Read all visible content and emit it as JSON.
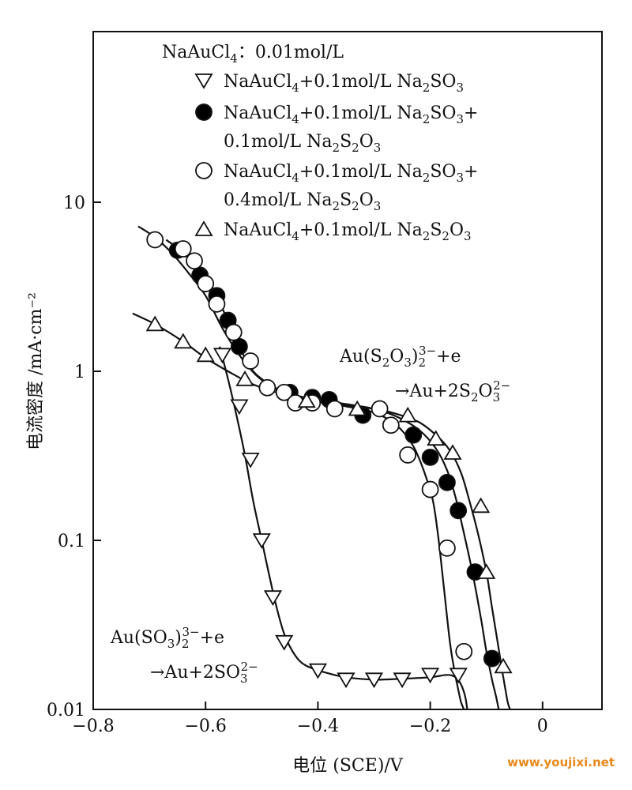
{
  "chart_data": {
    "type": "scatter",
    "title": "",
    "xlabel": "电位 (SCE)/V",
    "ylabel": "电流密度 /mA·cm⁻²",
    "xlim": [
      -0.8,
      0.0
    ],
    "ylim": [
      0.01,
      100
    ],
    "y_scale": "log",
    "x_ticks": [
      -0.8,
      -0.6,
      -0.4,
      -0.2,
      0
    ],
    "x_tick_labels": [
      "−0.8",
      "−0.6",
      "−0.4",
      "−0.2",
      "0"
    ],
    "y_ticks": [
      0.01,
      0.1,
      1,
      10
    ],
    "y_tick_labels": [
      "0.01",
      "0.1",
      "1",
      "10"
    ],
    "grid": false,
    "legend_position": "top",
    "legend_header": {
      "main": "NaAuCl",
      "sub": "4",
      "after": "：0.01mol/L"
    },
    "series": [
      {
        "marker": "triangle-down",
        "fill": "#ffffff",
        "label_lines": [
          [
            [
              "NaAuCl",
              ""
            ],
            [
              "4",
              "sub"
            ],
            [
              "+0.1mol/L Na",
              ""
            ],
            [
              "2",
              "sub"
            ],
            [
              "SO",
              ""
            ],
            [
              "3",
              "sub"
            ]
          ]
        ],
        "x": [
          -0.57,
          -0.54,
          -0.52,
          -0.5,
          -0.48,
          -0.46,
          -0.4,
          -0.35,
          -0.3,
          -0.25,
          -0.2,
          -0.15
        ],
        "y": [
          1.25,
          0.62,
          0.3,
          0.1,
          0.046,
          0.025,
          0.017,
          0.015,
          0.015,
          0.015,
          0.016,
          0.016
        ],
        "curve_x": [
          -0.575,
          -0.56,
          -0.545,
          -0.53,
          -0.515,
          -0.5,
          -0.49,
          -0.475,
          -0.46,
          -0.445,
          -0.43,
          -0.41,
          -0.38,
          -0.35,
          -0.3,
          -0.25,
          -0.2,
          -0.17,
          -0.155,
          -0.145,
          -0.138,
          -0.134
        ],
        "curve_y": [
          1.4,
          0.9,
          0.55,
          0.32,
          0.17,
          0.1,
          0.07,
          0.042,
          0.028,
          0.022,
          0.019,
          0.0175,
          0.0163,
          0.0155,
          0.015,
          0.0152,
          0.0155,
          0.016,
          0.0155,
          0.014,
          0.012,
          0.01
        ]
      },
      {
        "marker": "circle",
        "fill": "#000000",
        "label_lines": [
          [
            [
              "NaAuCl",
              ""
            ],
            [
              "4",
              "sub"
            ],
            [
              "+0.1mol/L Na",
              ""
            ],
            [
              "2",
              "sub"
            ],
            [
              "SO",
              ""
            ],
            [
              "3",
              "sub"
            ],
            [
              "+",
              ""
            ]
          ],
          [
            [
              "0.1mol/L Na",
              ""
            ],
            [
              "2",
              "sub"
            ],
            [
              "S",
              ""
            ],
            [
              "2",
              "sub"
            ],
            [
              "O",
              ""
            ],
            [
              "3",
              "sub"
            ]
          ]
        ],
        "x": [
          -0.65,
          -0.61,
          -0.58,
          -0.56,
          -0.54,
          -0.45,
          -0.41,
          -0.38,
          -0.32,
          -0.23,
          -0.2,
          -0.17,
          -0.15,
          -0.12,
          -0.09
        ],
        "y": [
          5.2,
          3.7,
          2.8,
          2.0,
          1.4,
          0.75,
          0.7,
          0.68,
          0.55,
          0.42,
          0.31,
          0.22,
          0.15,
          0.065,
          0.02
        ],
        "curve_x": [
          -0.67,
          -0.64,
          -0.61,
          -0.58,
          -0.56,
          -0.54,
          -0.52,
          -0.5,
          -0.47,
          -0.44,
          -0.4,
          -0.35,
          -0.3,
          -0.26,
          -0.22,
          -0.19,
          -0.17,
          -0.155,
          -0.14,
          -0.125,
          -0.11,
          -0.1,
          -0.09,
          -0.083,
          -0.078
        ],
        "curve_y": [
          6.0,
          5.0,
          3.8,
          2.7,
          2.0,
          1.4,
          1.05,
          0.9,
          0.78,
          0.72,
          0.68,
          0.64,
          0.6,
          0.54,
          0.45,
          0.35,
          0.26,
          0.18,
          0.11,
          0.065,
          0.035,
          0.022,
          0.015,
          0.012,
          0.01
        ]
      },
      {
        "marker": "circle",
        "fill": "#ffffff",
        "label_lines": [
          [
            [
              "NaAuCl",
              ""
            ],
            [
              "4",
              "sub"
            ],
            [
              "+0.1mol/L Na",
              ""
            ],
            [
              "2",
              "sub"
            ],
            [
              "SO",
              ""
            ],
            [
              "3",
              "sub"
            ],
            [
              "+",
              ""
            ]
          ],
          [
            [
              "0.4mol/L Na",
              ""
            ],
            [
              "2",
              "sub"
            ],
            [
              "S",
              ""
            ],
            [
              "2",
              "sub"
            ],
            [
              "O",
              ""
            ],
            [
              "3",
              "sub"
            ]
          ]
        ],
        "x": [
          -0.69,
          -0.64,
          -0.62,
          -0.6,
          -0.58,
          -0.55,
          -0.52,
          -0.49,
          -0.46,
          -0.44,
          -0.41,
          -0.37,
          -0.29,
          -0.27,
          -0.24,
          -0.2,
          -0.17,
          -0.14
        ],
        "y": [
          6.0,
          5.3,
          4.5,
          3.3,
          2.5,
          1.7,
          1.15,
          0.8,
          0.75,
          0.65,
          0.65,
          0.6,
          0.6,
          0.48,
          0.32,
          0.2,
          0.09,
          0.022
        ],
        "curve_x": [
          -0.72,
          -0.69,
          -0.66,
          -0.63,
          -0.6,
          -0.57,
          -0.54,
          -0.51,
          -0.48,
          -0.45,
          -0.4,
          -0.35,
          -0.3,
          -0.26,
          -0.23,
          -0.21,
          -0.195,
          -0.185,
          -0.175,
          -0.165,
          -0.157,
          -0.15,
          -0.145,
          -0.14
        ],
        "curve_y": [
          7.2,
          6.2,
          5.0,
          3.8,
          2.8,
          1.8,
          1.25,
          0.95,
          0.8,
          0.72,
          0.66,
          0.62,
          0.57,
          0.48,
          0.36,
          0.25,
          0.17,
          0.1,
          0.05,
          0.025,
          0.017,
          0.013,
          0.011,
          0.01
        ]
      },
      {
        "marker": "triangle-up",
        "fill": "#ffffff",
        "label_lines": [
          [
            [
              "NaAuCl",
              ""
            ],
            [
              "4",
              "sub"
            ],
            [
              "+0.1mol/L Na",
              ""
            ],
            [
              "2",
              "sub"
            ],
            [
              "S",
              ""
            ],
            [
              "2",
              "sub"
            ],
            [
              "O",
              ""
            ],
            [
              "3",
              "sub"
            ]
          ]
        ],
        "x": [
          -0.69,
          -0.64,
          -0.6,
          -0.53,
          -0.42,
          -0.33,
          -0.24,
          -0.19,
          -0.16,
          -0.11,
          -0.1,
          -0.07
        ],
        "y": [
          1.9,
          1.5,
          1.25,
          0.9,
          0.67,
          0.6,
          0.55,
          0.4,
          0.33,
          0.16,
          0.065,
          0.018
        ],
        "curve_x": [
          -0.73,
          -0.69,
          -0.64,
          -0.6,
          -0.56,
          -0.52,
          -0.48,
          -0.44,
          -0.4,
          -0.35,
          -0.3,
          -0.26,
          -0.22,
          -0.19,
          -0.165,
          -0.145,
          -0.13,
          -0.115,
          -0.1,
          -0.09,
          -0.08,
          -0.072,
          -0.066,
          -0.062,
          -0.058
        ],
        "curve_y": [
          2.2,
          1.9,
          1.5,
          1.2,
          1.0,
          0.85,
          0.76,
          0.7,
          0.66,
          0.63,
          0.6,
          0.56,
          0.5,
          0.42,
          0.34,
          0.25,
          0.17,
          0.11,
          0.065,
          0.04,
          0.025,
          0.017,
          0.013,
          0.011,
          0.01
        ]
      }
    ],
    "annotations": [
      {
        "lines": [
          [
            [
              "Au(S",
              ""
            ],
            [
              "2",
              "sub"
            ],
            [
              "O",
              ""
            ],
            [
              "3",
              "sub"
            ],
            [
              ")",
              ""
            ],
            [
              "2",
              "sub"
            ],
            [
              "3−",
              "sup"
            ],
            [
              "+e",
              ""
            ]
          ],
          [
            [
              "→Au+2S",
              ""
            ],
            [
              "2",
              "sub"
            ],
            [
              "O",
              ""
            ],
            [
              "3",
              "sub"
            ],
            [
              "2−",
              "sup"
            ]
          ]
        ]
      },
      {
        "lines": [
          [
            [
              "Au(SO",
              ""
            ],
            [
              "3",
              "sub"
            ],
            [
              ")",
              ""
            ],
            [
              "2",
              "sub"
            ],
            [
              "3−",
              "sup"
            ],
            [
              "+e",
              ""
            ]
          ],
          [
            [
              "→Au+2SO",
              ""
            ],
            [
              "3",
              "sub"
            ],
            [
              "2−",
              "sup"
            ]
          ]
        ]
      }
    ]
  },
  "watermark": "www.youjixi.net"
}
